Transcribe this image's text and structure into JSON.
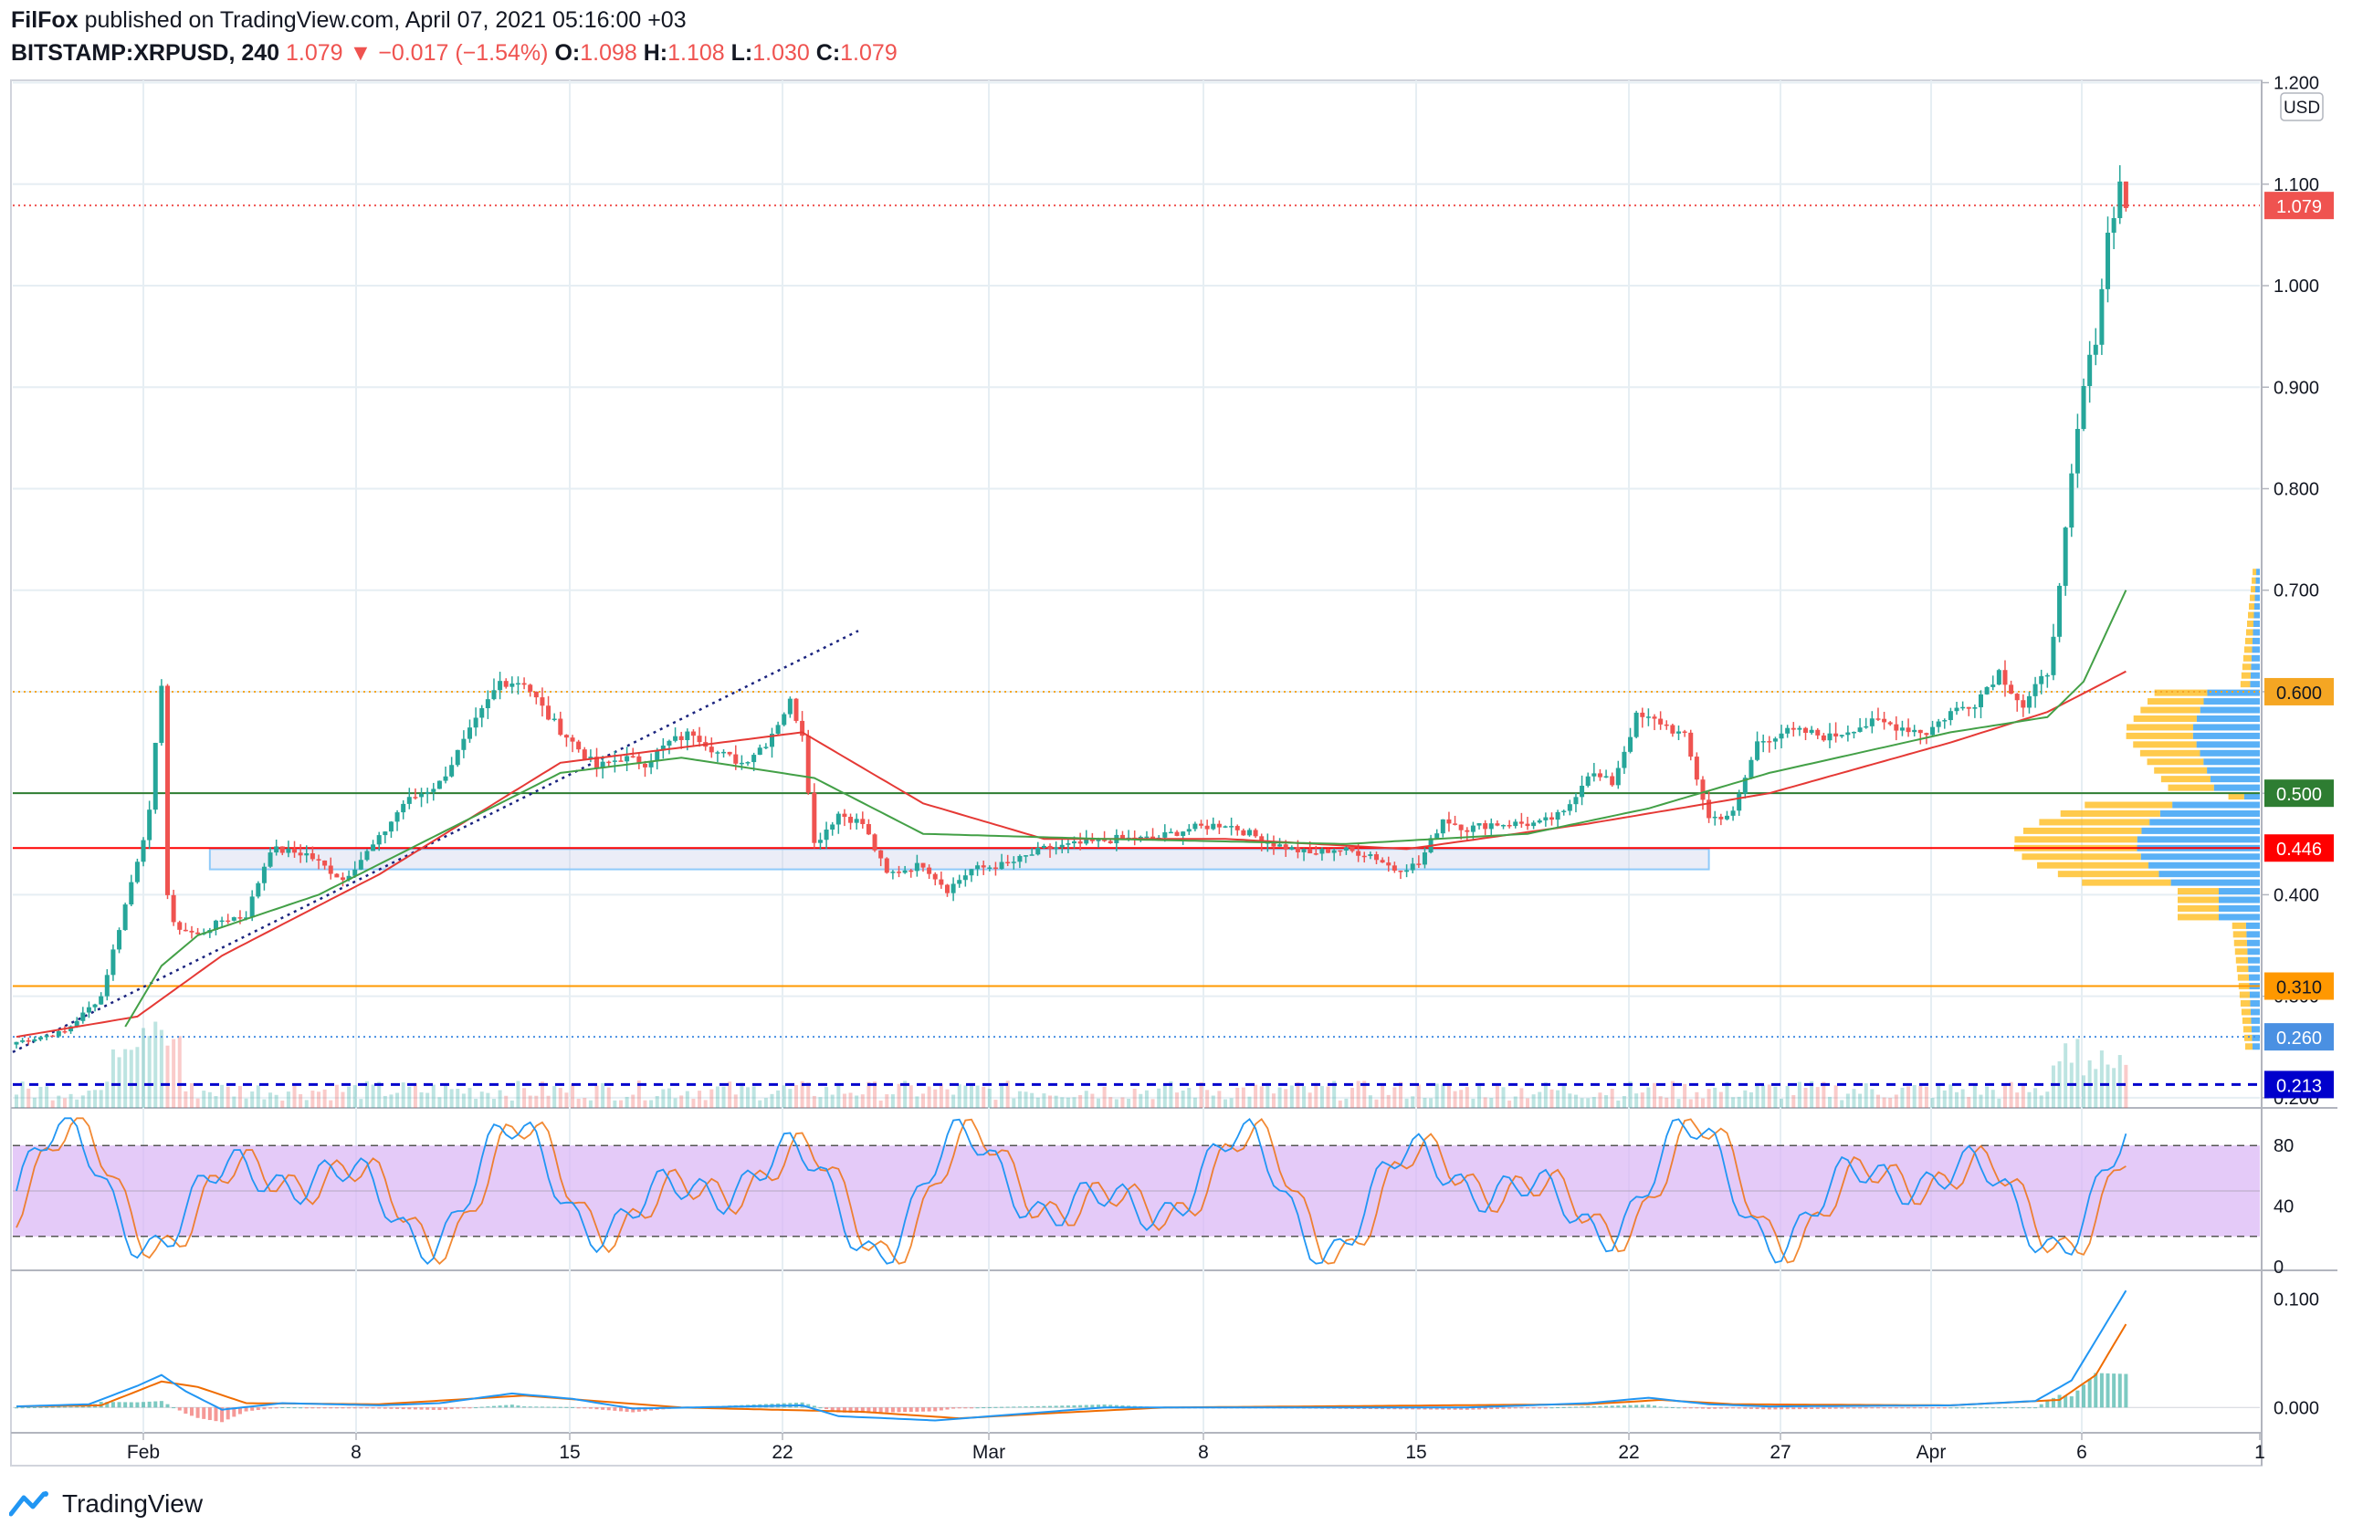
{
  "header": {
    "publisher": "FilFox",
    "published_line": "published on TradingView.com, April 07, 2021 05:16:00 +03",
    "symbol": "BITSTAMP:XRPUSD",
    "interval": "240",
    "last": "1.079",
    "arrow": "▼",
    "change": "−0.017 (−1.54%)",
    "o_label": "O:",
    "o_value": "1.098",
    "h_label": "H:",
    "h_value": "1.108",
    "l_label": "L:",
    "l_value": "1.030",
    "c_label": "C:",
    "c_value": "1.079"
  },
  "footer": {
    "brand": "TradingView"
  },
  "colors": {
    "up": "#26a69a",
    "down": "#ef5350",
    "grid": "#e6eef3",
    "ma_red": "#e53935",
    "ma_green": "#43a047",
    "stoch_k": "#2196f3",
    "stoch_d": "#ef6c00",
    "band": "#d9b3f5",
    "vp_up": "#2196f3",
    "vp_down": "#ffb300"
  },
  "chart_data": [
    {
      "type": "candlestick",
      "name": "price",
      "currency": "USD",
      "x_ticks": [
        "Feb",
        "8",
        "15",
        "22",
        "Mar",
        "8",
        "15",
        "22",
        "27",
        "Apr",
        "6",
        "1"
      ],
      "y_ticks": [
        "1.200",
        "1.100",
        "1.000",
        "0.900",
        "0.800",
        "0.700",
        "0.600",
        "0.500",
        "0.400",
        "0.300",
        "0.200"
      ],
      "ylim": [
        0.19,
        1.205
      ],
      "horizontal_levels": [
        {
          "value": 1.079,
          "label": "1.079",
          "color": "#ef5350",
          "style": "dotted"
        },
        {
          "value": 0.6,
          "label": "0.600",
          "color": "#f5a623",
          "style": "dotted"
        },
        {
          "value": 0.5,
          "label": "0.500",
          "color": "#2e7d32",
          "style": "solid"
        },
        {
          "value": 0.446,
          "label": "0.446",
          "color": "#ff0000",
          "style": "solid"
        },
        {
          "value": 0.31,
          "label": "0.310",
          "color": "#ff9800",
          "style": "solid"
        },
        {
          "value": 0.26,
          "label": "0.260",
          "color": "#4a90e2",
          "style": "dotted"
        },
        {
          "value": 0.213,
          "label": "0.213",
          "color": "#0000cc",
          "style": "dashed"
        }
      ],
      "waypoints": [
        [
          0,
          0.255
        ],
        [
          8,
          0.265
        ],
        [
          14,
          0.3
        ],
        [
          18,
          0.39
        ],
        [
          22,
          0.48
        ],
        [
          24,
          0.61
        ],
        [
          25,
          0.4
        ],
        [
          26,
          0.37
        ],
        [
          30,
          0.36
        ],
        [
          34,
          0.375
        ],
        [
          38,
          0.38
        ],
        [
          42,
          0.445
        ],
        [
          48,
          0.44
        ],
        [
          54,
          0.415
        ],
        [
          60,
          0.455
        ],
        [
          64,
          0.49
        ],
        [
          70,
          0.51
        ],
        [
          76,
          0.57
        ],
        [
          80,
          0.61
        ],
        [
          84,
          0.61
        ],
        [
          88,
          0.575
        ],
        [
          92,
          0.55
        ],
        [
          96,
          0.525
        ],
        [
          100,
          0.535
        ],
        [
          104,
          0.53
        ],
        [
          108,
          0.55
        ],
        [
          112,
          0.56
        ],
        [
          116,
          0.54
        ],
        [
          120,
          0.53
        ],
        [
          124,
          0.55
        ],
        [
          128,
          0.59
        ],
        [
          130,
          0.56
        ],
        [
          132,
          0.45
        ],
        [
          136,
          0.48
        ],
        [
          140,
          0.47
        ],
        [
          144,
          0.42
        ],
        [
          150,
          0.43
        ],
        [
          154,
          0.405
        ],
        [
          158,
          0.425
        ],
        [
          164,
          0.43
        ],
        [
          170,
          0.445
        ],
        [
          176,
          0.45
        ],
        [
          182,
          0.455
        ],
        [
          188,
          0.455
        ],
        [
          194,
          0.465
        ],
        [
          200,
          0.47
        ],
        [
          204,
          0.46
        ],
        [
          208,
          0.45
        ],
        [
          214,
          0.44
        ],
        [
          218,
          0.445
        ],
        [
          224,
          0.44
        ],
        [
          228,
          0.425
        ],
        [
          232,
          0.43
        ],
        [
          236,
          0.475
        ],
        [
          240,
          0.465
        ],
        [
          244,
          0.47
        ],
        [
          248,
          0.47
        ],
        [
          252,
          0.47
        ],
        [
          256,
          0.48
        ],
        [
          260,
          0.52
        ],
        [
          264,
          0.51
        ],
        [
          268,
          0.575
        ],
        [
          272,
          0.57
        ],
        [
          276,
          0.555
        ],
        [
          280,
          0.475
        ],
        [
          284,
          0.48
        ],
        [
          288,
          0.55
        ],
        [
          292,
          0.56
        ],
        [
          296,
          0.56
        ],
        [
          300,
          0.555
        ],
        [
          304,
          0.565
        ],
        [
          308,
          0.57
        ],
        [
          312,
          0.565
        ],
        [
          316,
          0.56
        ],
        [
          320,
          0.58
        ],
        [
          324,
          0.59
        ],
        [
          328,
          0.62
        ],
        [
          332,
          0.585
        ],
        [
          336,
          0.62
        ],
        [
          338,
          0.7
        ],
        [
          340,
          0.81
        ],
        [
          342,
          0.9
        ],
        [
          344,
          0.95
        ],
        [
          346,
          1.05
        ],
        [
          348,
          1.1
        ],
        [
          349,
          1.079
        ]
      ],
      "ma_red_waypoints": [
        [
          0,
          0.26
        ],
        [
          20,
          0.28
        ],
        [
          34,
          0.34
        ],
        [
          60,
          0.42
        ],
        [
          90,
          0.53
        ],
        [
          130,
          0.56
        ],
        [
          150,
          0.49
        ],
        [
          170,
          0.455
        ],
        [
          200,
          0.455
        ],
        [
          230,
          0.445
        ],
        [
          260,
          0.47
        ],
        [
          290,
          0.5
        ],
        [
          320,
          0.55
        ],
        [
          336,
          0.58
        ],
        [
          349,
          0.62
        ]
      ],
      "ma_green_waypoints": [
        [
          18,
          0.27
        ],
        [
          24,
          0.33
        ],
        [
          30,
          0.36
        ],
        [
          50,
          0.4
        ],
        [
          70,
          0.46
        ],
        [
          90,
          0.52
        ],
        [
          110,
          0.535
        ],
        [
          132,
          0.515
        ],
        [
          150,
          0.46
        ],
        [
          180,
          0.455
        ],
        [
          220,
          0.45
        ],
        [
          250,
          0.46
        ],
        [
          270,
          0.485
        ],
        [
          290,
          0.52
        ],
        [
          320,
          0.56
        ],
        [
          336,
          0.575
        ],
        [
          342,
          0.61
        ],
        [
          349,
          0.7
        ]
      ]
    },
    {
      "type": "line",
      "name": "stochastic",
      "y_ticks": [
        "80",
        "40",
        "0"
      ],
      "ylim": [
        0,
        100
      ],
      "band": [
        20,
        80
      ]
    },
    {
      "type": "line",
      "name": "macd",
      "y_ticks": [
        "0.100",
        "0.000"
      ],
      "ylim": [
        -0.02,
        0.12
      ]
    }
  ]
}
